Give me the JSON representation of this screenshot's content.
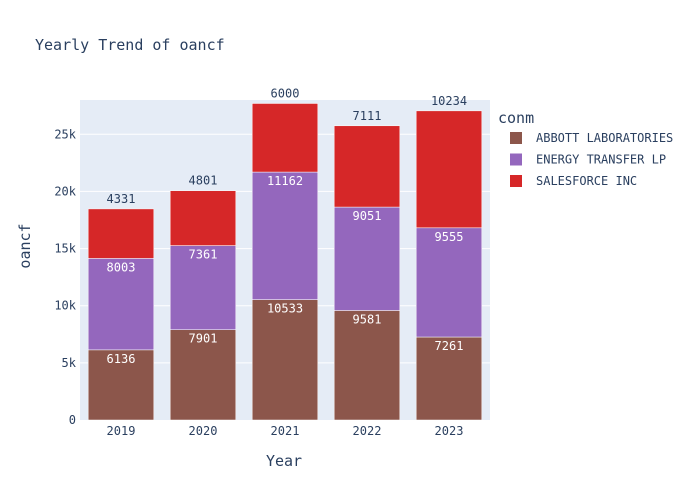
{
  "chart_data": {
    "type": "bar",
    "stacked": true,
    "title": "Yearly Trend of oancf",
    "xlabel": "Year",
    "ylabel": "oancf",
    "categories": [
      "2019",
      "2020",
      "2021",
      "2022",
      "2023"
    ],
    "ylim": [
      0,
      28000
    ],
    "yticks": [
      0,
      5000,
      10000,
      15000,
      20000,
      25000
    ],
    "ytick_labels": [
      "0",
      "5k",
      "10k",
      "15k",
      "20k",
      "25k"
    ],
    "legend_title": "conm",
    "legend_position": "right",
    "grid": true,
    "series": [
      {
        "name": "ABBOTT LABORATORIES",
        "color": "#8c564b",
        "values": [
          6136,
          7901,
          10533,
          9581,
          7261
        ]
      },
      {
        "name": "ENERGY TRANSFER LP",
        "color": "#9467bd",
        "values": [
          8003,
          7361,
          11162,
          9051,
          9555
        ]
      },
      {
        "name": "SALESFORCE INC",
        "color": "#d62728",
        "values": [
          4331,
          4801,
          6000,
          7111,
          10234
        ]
      }
    ]
  }
}
